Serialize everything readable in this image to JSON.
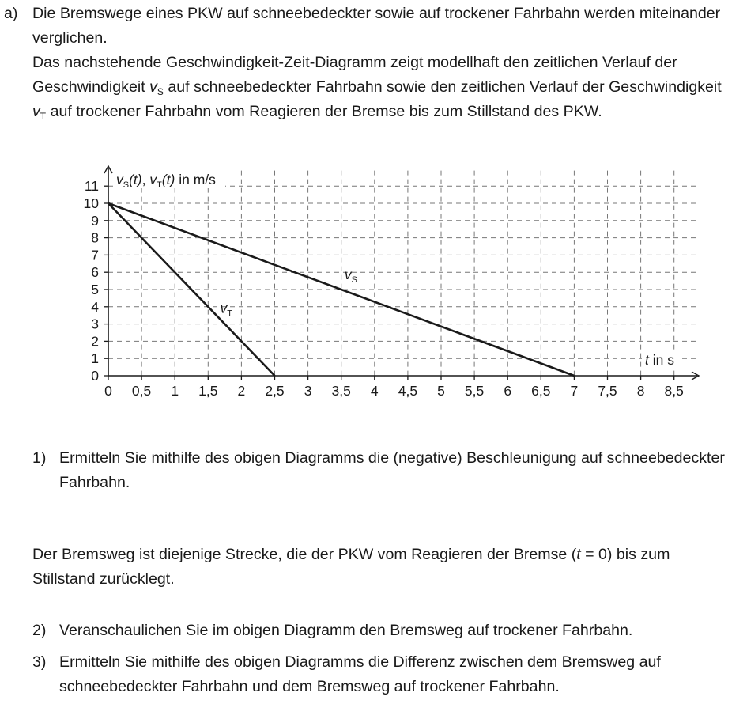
{
  "task": {
    "label": "a)",
    "intro_p1": "Die Bremswege eines PKW auf schneebedeckter sowie auf trockener Fahrbahn werden miteinander verglichen.",
    "intro_p2": {
      "t1": "Das nachstehende Geschwindigkeit-Zeit-Diagramm zeigt modellhaft den zeitlichen Verlauf der Geschwindigkeit ",
      "v": "v",
      "s": "S",
      "t2": " auf schneebedeckter Fahrbahn sowie den zeitlichen Verlauf der Ge­schwindigkeit ",
      "t": "T",
      "t3": " auf trockener Fahrbahn vom Reagieren der Bremse bis zum Stillstand des PKW."
    }
  },
  "chart_data": {
    "type": "line",
    "ylabel": "vS(t), vT(t) in m/s",
    "ylabel_parts": {
      "v": "v",
      "s": "S",
      "t": "T",
      "arg": "(t)",
      "sep": ", ",
      "unit": " in m/s"
    },
    "xlabel": "t in s",
    "xlabel_parts": {
      "var": "t",
      "unit": " in s"
    },
    "xlim": [
      0,
      8.5
    ],
    "ylim": [
      0,
      11
    ],
    "x_ticks": [
      "0",
      "0,5",
      "1",
      "1,5",
      "2",
      "2,5",
      "3",
      "3,5",
      "4",
      "4,5",
      "5",
      "5,5",
      "6",
      "6,5",
      "7",
      "7,5",
      "8",
      "8,5"
    ],
    "y_ticks": [
      "0",
      "1",
      "2",
      "3",
      "4",
      "5",
      "6",
      "7",
      "8",
      "9",
      "10",
      "11"
    ],
    "grid": true,
    "series": [
      {
        "name": "vS",
        "label_main": "v",
        "label_sub": "S",
        "x": [
          0,
          7
        ],
        "y": [
          10,
          0
        ],
        "label_at": [
          3.55,
          5.6
        ]
      },
      {
        "name": "vT",
        "label_main": "v",
        "label_sub": "T",
        "x": [
          0,
          2.5
        ],
        "y": [
          10,
          0
        ],
        "label_at": [
          1.68,
          3.65
        ]
      }
    ]
  },
  "questions": [
    {
      "num": "1)",
      "text": "Ermitteln Sie mithilfe des obigen Diagramms die (negative) Beschleunigung auf schnee­bedeckter Fahrbahn."
    },
    {
      "num": "2)",
      "text": "Veranschaulichen Sie im obigen Diagramm den Bremsweg auf trockener Fahrbahn."
    },
    {
      "num": "3)",
      "text": "Ermitteln Sie mithilfe des obigen Diagramms die Differenz zwischen dem Bremsweg auf schneebedeckter Fahrbahn und dem Bremsweg auf trockener Fahrbahn."
    }
  ],
  "definition": {
    "t1": "Der Bremsweg ist diejenige Strecke, die der PKW vom Reagieren der Bremse (",
    "var": "t",
    "t2": " = 0) bis zum Stillstand zurücklegt."
  }
}
